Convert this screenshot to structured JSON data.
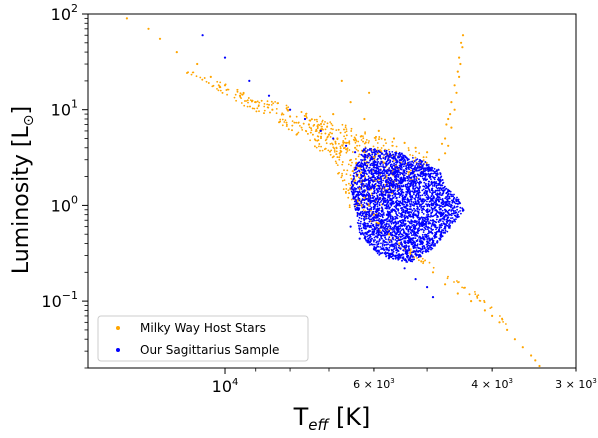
{
  "chart_data": {
    "type": "scatter",
    "title": "",
    "xlabel": {
      "main": "T",
      "sub": "eff",
      "unit": " [K]"
    },
    "ylabel": {
      "main": "Luminosity [L",
      "sym": "⊙",
      "close": "]"
    },
    "x_scale": "log",
    "x_inverted": true,
    "y_scale": "log",
    "xlim": [
      16000,
      3000
    ],
    "ylim": [
      0.02,
      100
    ],
    "x_ticks": [
      {
        "value": 10000,
        "label_base": "10",
        "label_exp": "4",
        "major": true
      },
      {
        "value": 6000,
        "label_base": "6 × 10",
        "label_exp": "3",
        "major": false
      },
      {
        "value": 4000,
        "label_base": "4 × 10",
        "label_exp": "3",
        "major": false
      },
      {
        "value": 3000,
        "label_base": "3 × 10",
        "label_exp": "3",
        "major": false
      }
    ],
    "y_ticks": [
      {
        "value": 0.1,
        "label_base": "10",
        "label_exp": "−1"
      },
      {
        "value": 1,
        "label_base": "10",
        "label_exp": "0"
      },
      {
        "value": 10,
        "label_base": "10",
        "label_exp": "1"
      },
      {
        "value": 100,
        "label_base": "10",
        "label_exp": "2"
      }
    ],
    "grid": false,
    "legend_position": "lower-left",
    "series": [
      {
        "name": "Milky Way Host Stars",
        "color": "#FFA500",
        "marker": "dot",
        "points": [
          [
            14000,
            90
          ],
          [
            13000,
            70
          ],
          [
            12500,
            55
          ],
          [
            11800,
            40
          ],
          [
            11000,
            30
          ],
          [
            10500,
            22
          ],
          [
            10000,
            18
          ],
          [
            9500,
            14
          ],
          [
            9000,
            12
          ],
          [
            8500,
            10
          ],
          [
            8000,
            8.5
          ],
          [
            7500,
            7
          ],
          [
            7200,
            6.2
          ],
          [
            7000,
            5.5
          ],
          [
            6800,
            5
          ],
          [
            6600,
            4.5
          ],
          [
            6400,
            4
          ],
          [
            6200,
            3.6
          ],
          [
            6000,
            3.2
          ],
          [
            5800,
            2.8
          ],
          [
            6900,
            9
          ],
          [
            6500,
            12
          ],
          [
            6200,
            8
          ],
          [
            5900,
            6
          ],
          [
            5600,
            5
          ],
          [
            5400,
            4.5
          ],
          [
            5200,
            4
          ],
          [
            5000,
            3.6
          ],
          [
            6100,
            15
          ],
          [
            6700,
            20
          ],
          [
            6300,
            1.5
          ],
          [
            6200,
            1.2
          ],
          [
            6100,
            1.0
          ],
          [
            6000,
            0.8
          ],
          [
            5900,
            0.65
          ],
          [
            5700,
            0.5
          ],
          [
            5500,
            0.4
          ],
          [
            5300,
            0.32
          ],
          [
            5100,
            0.26
          ],
          [
            4900,
            0.2
          ],
          [
            4700,
            0.15
          ],
          [
            4500,
            0.12
          ],
          [
            4300,
            0.1
          ],
          [
            4100,
            0.08
          ],
          [
            4000,
            0.07
          ],
          [
            3900,
            0.06
          ],
          [
            3800,
            0.05
          ],
          [
            3700,
            0.04
          ],
          [
            3600,
            0.033
          ],
          [
            3500,
            0.027
          ],
          [
            3450,
            0.024
          ],
          [
            3400,
            0.021
          ],
          [
            4800,
            3
          ],
          [
            4700,
            5
          ],
          [
            4650,
            8
          ],
          [
            4600,
            12
          ],
          [
            4550,
            18
          ],
          [
            4500,
            25
          ],
          [
            4480,
            35
          ],
          [
            4450,
            50
          ],
          [
            4420,
            60
          ],
          [
            4700,
            3.5
          ],
          [
            4650,
            4.2
          ],
          [
            4600,
            6.5
          ],
          [
            4550,
            10
          ],
          [
            4520,
            15
          ],
          [
            4480,
            22
          ],
          [
            4460,
            30
          ],
          [
            4430,
            45
          ],
          [
            4750,
            4.4
          ],
          [
            4680,
            7
          ],
          [
            4620,
            9
          ]
        ]
      },
      {
        "name": "Our Sagittarius Sample",
        "color": "#0000FF",
        "marker": "dot",
        "points": [
          [
            10800,
            60
          ],
          [
            10000,
            35
          ],
          [
            9200,
            20
          ],
          [
            8600,
            14
          ],
          [
            8000,
            10
          ],
          [
            7600,
            8
          ],
          [
            7200,
            6
          ],
          [
            6900,
            5
          ],
          [
            6600,
            4.2
          ],
          [
            6400,
            3.6
          ],
          [
            6200,
            3
          ],
          [
            6000,
            2.6
          ],
          [
            5900,
            2.2
          ],
          [
            5700,
            1.9
          ],
          [
            5500,
            1.6
          ],
          [
            5300,
            1.3
          ],
          [
            5200,
            1.1
          ],
          [
            5000,
            0.9
          ],
          [
            4900,
            0.7
          ],
          [
            4800,
            0.55
          ],
          [
            6000,
            1.5
          ],
          [
            5800,
            1.2
          ],
          [
            5600,
            0.9
          ],
          [
            5400,
            0.7
          ],
          [
            5200,
            0.5
          ],
          [
            5000,
            0.42
          ],
          [
            6500,
            0.6
          ],
          [
            6300,
            0.45
          ],
          [
            6000,
            0.35
          ],
          [
            5700,
            0.28
          ],
          [
            5400,
            0.22
          ],
          [
            5200,
            0.17
          ],
          [
            5000,
            0.14
          ],
          [
            4900,
            0.11
          ],
          [
            5800,
            2.5
          ],
          [
            5600,
            2.2
          ],
          [
            5400,
            1.9
          ],
          [
            5200,
            1.7
          ],
          [
            5000,
            1.4
          ],
          [
            4800,
            1.1
          ],
          [
            4700,
            0.9
          ],
          [
            4650,
            0.75
          ],
          [
            6100,
            1.8
          ],
          [
            5900,
            1.6
          ],
          [
            5750,
            1.4
          ],
          [
            5550,
            1.2
          ],
          [
            5350,
            1.0
          ],
          [
            5150,
            0.85
          ],
          [
            4950,
            0.65
          ],
          [
            4850,
            0.5
          ]
        ]
      }
    ],
    "clusters": [
      {
        "series": "Milky Way Host Stars",
        "color": "#FFA500",
        "polygon": [
          [
            12000,
            30
          ],
          [
            9000,
            14
          ],
          [
            7000,
            8
          ],
          [
            5500,
            4.5
          ],
          [
            5000,
            3.2
          ],
          [
            5000,
            2.2
          ],
          [
            5600,
            1.4
          ],
          [
            5900,
            0.8
          ],
          [
            5400,
            0.4
          ],
          [
            4800,
            0.22
          ],
          [
            4200,
            0.12
          ],
          [
            3800,
            0.06
          ],
          [
            3400,
            0.022
          ],
          [
            3500,
            0.028
          ],
          [
            4000,
            0.08
          ],
          [
            4600,
            0.16
          ],
          [
            5500,
            0.36
          ],
          [
            6500,
            0.9
          ],
          [
            6900,
            3
          ],
          [
            8000,
            6
          ],
          [
            10000,
            14
          ]
        ],
        "count": 900
      },
      {
        "series": "Our Sagittarius Sample",
        "color": "#0000FF",
        "polygon": [
          [
            6200,
            4
          ],
          [
            5500,
            3.6
          ],
          [
            5000,
            2.8
          ],
          [
            4800,
            2.4
          ],
          [
            4700,
            1.6
          ],
          [
            4500,
            1.2
          ],
          [
            4400,
            0.9
          ],
          [
            4600,
            0.6
          ],
          [
            4900,
            0.35
          ],
          [
            5300,
            0.25
          ],
          [
            5900,
            0.3
          ],
          [
            6300,
            0.5
          ],
          [
            6400,
            0.9
          ],
          [
            6500,
            1.6
          ],
          [
            6400,
            2.5
          ]
        ],
        "count": 3500
      }
    ]
  }
}
